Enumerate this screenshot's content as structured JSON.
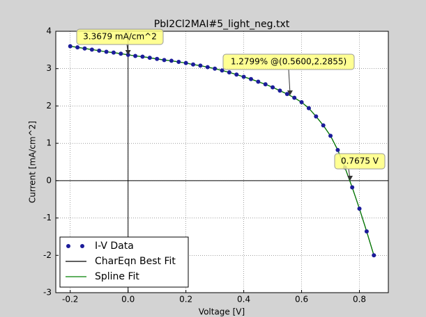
{
  "chart_data": {
    "type": "scatter",
    "title": "PbI2Cl2MAI#5_light_neg.txt",
    "x_label": "Voltage [V]",
    "y_label": "Current [mA/cm^2]",
    "xlim": [
      -0.25,
      0.9
    ],
    "ylim": [
      -3,
      4
    ],
    "xticks": [
      -0.2,
      {
        "value": 0,
        "label": "0.0"
      },
      0.2,
      0.4,
      0.6,
      0.8
    ],
    "yticks": [
      -3,
      -2,
      -1,
      0,
      1,
      2,
      3,
      4
    ],
    "grid": true,
    "legend": "lower left",
    "x": [
      -0.2,
      -0.175,
      -0.15,
      -0.125,
      -0.1,
      -0.075,
      -0.05,
      -0.025,
      0,
      0.025,
      0.05,
      0.075,
      0.1,
      0.125,
      0.15,
      0.175,
      0.2,
      0.225,
      0.25,
      0.275,
      0.3,
      0.325,
      0.35,
      0.375,
      0.4,
      0.425,
      0.45,
      0.475,
      0.5,
      0.525,
      0.55,
      0.575,
      0.6,
      0.625,
      0.65,
      0.675,
      0.7,
      0.725,
      0.75,
      0.775,
      0.8,
      0.825,
      0.85
    ],
    "series": [
      {
        "name": "I-V Data",
        "kind": "points",
        "color": "#1c1c9a",
        "values": [
          3.6,
          3.57,
          3.54,
          3.51,
          3.48,
          3.45,
          3.43,
          3.4,
          3.37,
          3.34,
          3.32,
          3.29,
          3.26,
          3.23,
          3.21,
          3.18,
          3.15,
          3.11,
          3.08,
          3.04,
          3.0,
          2.95,
          2.9,
          2.84,
          2.78,
          2.72,
          2.65,
          2.58,
          2.5,
          2.41,
          2.32,
          2.22,
          2.1,
          1.94,
          1.72,
          1.48,
          1.2,
          0.82,
          0.35,
          -0.18,
          -0.75,
          -1.36,
          -2.0
        ]
      },
      {
        "name": "CharEqn Best Fit",
        "kind": "line",
        "color": "#000000",
        "values": [
          3.6,
          3.57,
          3.54,
          3.51,
          3.48,
          3.45,
          3.43,
          3.4,
          3.37,
          3.34,
          3.32,
          3.29,
          3.26,
          3.23,
          3.21,
          3.18,
          3.15,
          3.11,
          3.08,
          3.04,
          3.0,
          2.95,
          2.9,
          2.84,
          2.78,
          2.72,
          2.65,
          2.58,
          2.5,
          2.41,
          2.32,
          2.22,
          2.1,
          1.94,
          1.72,
          1.48,
          1.2,
          0.82,
          0.35,
          -0.18,
          -0.75,
          -1.36,
          -2.0
        ]
      },
      {
        "name": "Spline Fit",
        "kind": "line",
        "color": "#008000",
        "values": [
          3.6,
          3.57,
          3.54,
          3.51,
          3.48,
          3.45,
          3.43,
          3.4,
          3.37,
          3.34,
          3.32,
          3.29,
          3.26,
          3.23,
          3.21,
          3.18,
          3.15,
          3.11,
          3.08,
          3.04,
          3.0,
          2.95,
          2.9,
          2.84,
          2.78,
          2.72,
          2.65,
          2.58,
          2.5,
          2.41,
          2.32,
          2.22,
          2.1,
          1.94,
          1.72,
          1.48,
          1.2,
          0.82,
          0.35,
          -0.18,
          -0.75,
          -1.36,
          -2.0
        ]
      }
    ],
    "annotations": [
      {
        "text": "3.3679 mA/cm^2",
        "x": 0,
        "y": 3.3679
      },
      {
        "text": "1.2799% @(0.5600,2.2855)",
        "x": 0.56,
        "y": 2.2855
      },
      {
        "text": "0.7675 V",
        "x": 0.7675,
        "y": 0
      }
    ]
  }
}
